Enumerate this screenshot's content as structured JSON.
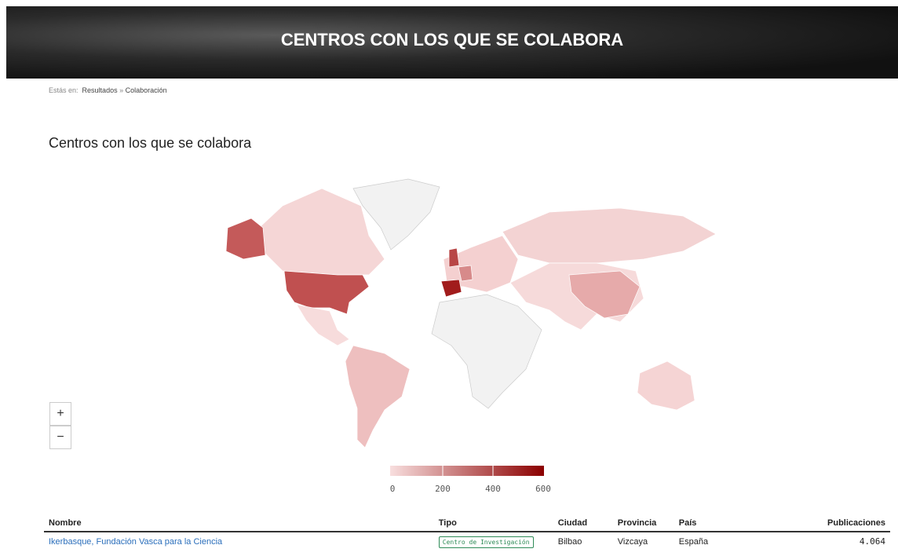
{
  "header": {
    "title": "CENTROS CON LOS QUE SE COLABORA"
  },
  "breadcrumb": {
    "label": "Estás en:",
    "items": [
      "Resultados",
      "Colaboración"
    ],
    "separator": "»"
  },
  "section": {
    "title": "Centros con los que se colabora"
  },
  "zoom": {
    "in": "+",
    "out": "−"
  },
  "legend": {
    "range": [
      0,
      600
    ],
    "ticks": [
      0,
      200,
      400,
      600
    ],
    "colors": [
      "#f8dede",
      "#8b0000"
    ]
  },
  "table": {
    "columns": [
      "Nombre",
      "Tipo",
      "Ciudad",
      "Provincia",
      "País",
      "Publicaciones"
    ],
    "rows": [
      [
        "Ikerbasque, Fundación Vasca para la Ciencia",
        "Centro de Investigación",
        "Bilbao",
        "Vizcaya",
        "España",
        "4.064"
      ]
    ]
  }
}
